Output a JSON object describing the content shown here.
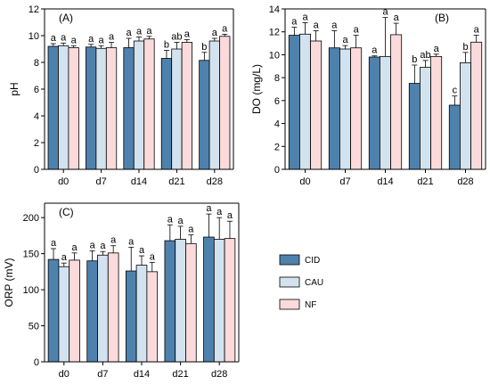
{
  "chart_data": [
    {
      "type": "bar",
      "panel_label": "(A)",
      "ylabel": "pH",
      "ylim": [
        0,
        12
      ],
      "yticks": [
        0,
        2,
        4,
        6,
        8,
        10,
        12
      ],
      "categories": [
        "d0",
        "d7",
        "d14",
        "d21",
        "d28"
      ],
      "series": [
        {
          "name": "CID",
          "values": [
            9.2,
            9.15,
            9.1,
            8.3,
            8.15
          ],
          "errors": [
            0.2,
            0.2,
            0.7,
            0.6,
            0.6
          ],
          "letters": [
            "a",
            "a",
            "a",
            "b",
            "b"
          ]
        },
        {
          "name": "CAU",
          "values": [
            9.25,
            9.05,
            9.6,
            9.0,
            9.6
          ],
          "errors": [
            0.2,
            0.2,
            0.3,
            0.5,
            0.2
          ],
          "letters": [
            "a",
            "a",
            "a",
            "ab",
            "a"
          ]
        },
        {
          "name": "NF",
          "values": [
            9.1,
            9.1,
            9.75,
            9.5,
            9.95
          ],
          "errors": [
            0.15,
            0.4,
            0.2,
            0.2,
            0.15
          ],
          "letters": [
            "a",
            "a",
            "a",
            "a",
            "a"
          ]
        }
      ]
    },
    {
      "type": "bar",
      "panel_label": "(B)",
      "ylabel": "DO (mg/L)",
      "ylim": [
        0,
        14
      ],
      "yticks": [
        0,
        2,
        4,
        6,
        8,
        10,
        12,
        14
      ],
      "categories": [
        "d0",
        "d7",
        "d14",
        "d21",
        "d28"
      ],
      "series": [
        {
          "name": "CID",
          "values": [
            11.7,
            10.6,
            9.8,
            7.5,
            5.6
          ],
          "errors": [
            0.7,
            1.5,
            0.1,
            1.6,
            0.8
          ],
          "letters": [
            "a",
            "a",
            "a",
            "b",
            "c"
          ]
        },
        {
          "name": "CAU",
          "values": [
            11.8,
            10.5,
            9.85,
            8.9,
            9.3
          ],
          "errors": [
            1.0,
            0.3,
            3.4,
            0.6,
            0.9
          ],
          "letters": [
            "a",
            "a",
            "a",
            "ab",
            "b"
          ]
        },
        {
          "name": "NF",
          "values": [
            11.2,
            10.6,
            11.75,
            9.85,
            11.1
          ],
          "errors": [
            0.9,
            1.1,
            1.0,
            0.2,
            0.6
          ],
          "letters": [
            "a",
            "a",
            "a",
            "a",
            "a"
          ]
        }
      ]
    },
    {
      "type": "bar",
      "panel_label": "(C)",
      "ylabel": "ORP (mV)",
      "ylim": [
        0,
        220
      ],
      "yticks": [
        0,
        50,
        100,
        150,
        200
      ],
      "categories": [
        "d0",
        "d7",
        "d14",
        "d21",
        "d28"
      ],
      "series": [
        {
          "name": "CID",
          "values": [
            142,
            140,
            126,
            168,
            173
          ],
          "errors": [
            15,
            14,
            33,
            22,
            32
          ],
          "letters": [
            "a",
            "a",
            "a",
            "a",
            "a"
          ]
        },
        {
          "name": "CAU",
          "values": [
            132,
            148,
            134,
            170,
            170
          ],
          "errors": [
            5,
            5,
            13,
            18,
            30
          ],
          "letters": [
            "a",
            "a",
            "a",
            "a",
            "a"
          ]
        },
        {
          "name": "NF",
          "values": [
            141,
            151,
            125,
            164,
            171
          ],
          "errors": [
            10,
            10,
            13,
            12,
            24
          ],
          "letters": [
            "a",
            "a",
            "a",
            "a",
            "a"
          ]
        }
      ]
    }
  ],
  "legend": {
    "items": [
      {
        "name": "CID",
        "color": "#4f81ad"
      },
      {
        "name": "CAU",
        "color": "#d2e3ef"
      },
      {
        "name": "NF",
        "color": "#fadadb"
      }
    ]
  }
}
